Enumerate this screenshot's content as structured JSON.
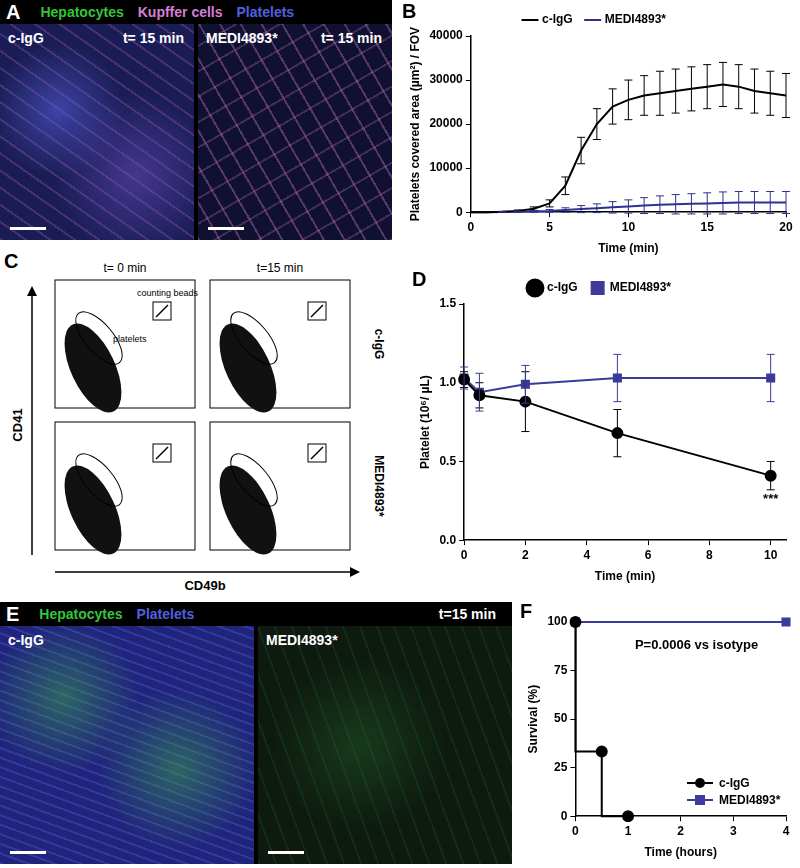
{
  "figure": {
    "A": {
      "letter": "A",
      "channels": [
        {
          "text": "Hepatocytes",
          "color": "#35c43a"
        },
        {
          "text": "Kupffer cells",
          "color": "#d67fd6"
        },
        {
          "text": "Platelets",
          "color": "#5060e0"
        }
      ],
      "images": [
        {
          "label": "c-IgG",
          "time": "t= 15 min"
        },
        {
          "label": "MEDI4893*",
          "time": "t= 15 min"
        }
      ]
    },
    "C": {
      "letter": "C",
      "x_label": "CD49b",
      "y_label": "CD41",
      "columns": [
        "t= 0 min",
        "t=15 min"
      ],
      "rows": [
        "c-IgG",
        "MEDI4893*"
      ],
      "gates": [
        "counting beads",
        "platelets"
      ]
    },
    "E": {
      "letter": "E",
      "channels": [
        {
          "text": "Hepatocytes",
          "color": "#35c43a"
        },
        {
          "text": "Platelets",
          "color": "#5060e0"
        }
      ],
      "time": "t=15 min",
      "images": [
        {
          "label": "c-IgG"
        },
        {
          "label": "MEDI4893*"
        }
      ]
    }
  },
  "chart_data": [
    {
      "panel": "B",
      "type": "line",
      "x": [
        0,
        1,
        2,
        3,
        4,
        5,
        6,
        7,
        8,
        9,
        10,
        11,
        12,
        13,
        14,
        15,
        16,
        17,
        18,
        19,
        20
      ],
      "series": [
        {
          "name": "c-IgG",
          "color": "#000000",
          "marker": "none",
          "values": [
            0,
            0,
            100,
            300,
            800,
            2000,
            6000,
            14000,
            20000,
            24000,
            25500,
            26500,
            27000,
            27500,
            28000,
            28500,
            29000,
            28500,
            27500,
            27000,
            26500
          ],
          "errors": [
            0,
            0,
            100,
            200,
            400,
            800,
            2000,
            3000,
            3500,
            4000,
            4500,
            4500,
            5000,
            5000,
            5000,
            5000,
            5000,
            5000,
            5000,
            5000,
            5000
          ]
        },
        {
          "name": "MEDI4893*",
          "color": "#2e3192",
          "marker": "none",
          "values": [
            0,
            0,
            50,
            100,
            200,
            300,
            500,
            700,
            900,
            1100,
            1300,
            1500,
            1700,
            1800,
            1900,
            2000,
            2100,
            2200,
            2200,
            2200,
            2200
          ],
          "errors": [
            0,
            0,
            50,
            100,
            200,
            300,
            500,
            800,
            1000,
            1300,
            1500,
            1800,
            2000,
            2200,
            2300,
            2400,
            2500,
            2500,
            2500,
            2500,
            2500
          ]
        }
      ],
      "xlim": [
        0,
        20
      ],
      "xticks": [
        0,
        5,
        10,
        15,
        20
      ],
      "ylim": [
        0,
        40000
      ],
      "yticks": [
        0,
        10000,
        20000,
        30000,
        40000
      ],
      "x_label": "Time (min)",
      "y_label": "Platelets covered area (µm²) / FOV",
      "legend": "top",
      "grid": false
    },
    {
      "panel": "D",
      "type": "line",
      "x": [
        0,
        0.5,
        2,
        5,
        10
      ],
      "series": [
        {
          "name": "c-IgG",
          "color": "#000000",
          "marker": "circle",
          "values": [
            1.02,
            0.92,
            0.88,
            0.68,
            0.41
          ],
          "errors": [
            0.05,
            0.08,
            0.19,
            0.15,
            0.09
          ]
        },
        {
          "name": "MEDI4893*",
          "color": "#3b3b9a",
          "marker": "square",
          "values": [
            1.03,
            0.94,
            0.99,
            1.03,
            1.03
          ],
          "errors": [
            0.07,
            0.12,
            0.12,
            0.15,
            0.15
          ]
        }
      ],
      "xlim": [
        0,
        10.5
      ],
      "xticks": [
        0,
        2,
        4,
        6,
        8,
        10
      ],
      "ylim": [
        0,
        1.5
      ],
      "yticks": [
        {
          "value": 0,
          "label": "0.0"
        },
        0.5,
        {
          "value": 1,
          "label": "1.0"
        },
        1.5
      ],
      "x_label": "Time (min)",
      "y_label": "Platelet (10⁶/ µL)",
      "annotations": [
        {
          "text": "***",
          "x": 10,
          "y": 0.26
        }
      ],
      "legend": "top",
      "grid": false
    },
    {
      "panel": "F",
      "type": "line",
      "series": [
        {
          "name": "c-IgG",
          "color": "#000000",
          "marker": "circle",
          "line_style": "step",
          "x": [
            0,
            0.5,
            1
          ],
          "values": [
            100,
            33.3,
            0
          ]
        },
        {
          "name": "MEDI4893*",
          "color": "#3b3b9a",
          "marker": "square",
          "line_style": "step",
          "x": [
            0,
            4
          ],
          "values": [
            100,
            100
          ]
        }
      ],
      "xlim": [
        0,
        4
      ],
      "xticks": [
        0,
        1,
        2,
        3,
        4
      ],
      "ylim": [
        0,
        100
      ],
      "yticks": [
        0,
        25,
        50,
        75,
        100
      ],
      "x_label": "Time (hours)",
      "y_label": "Survival (%)",
      "annotations": [
        {
          "text": "P=0.0006 vs isotype",
          "x": 2.3,
          "y": 88
        }
      ],
      "legend": "bottom-right",
      "grid": false
    }
  ]
}
